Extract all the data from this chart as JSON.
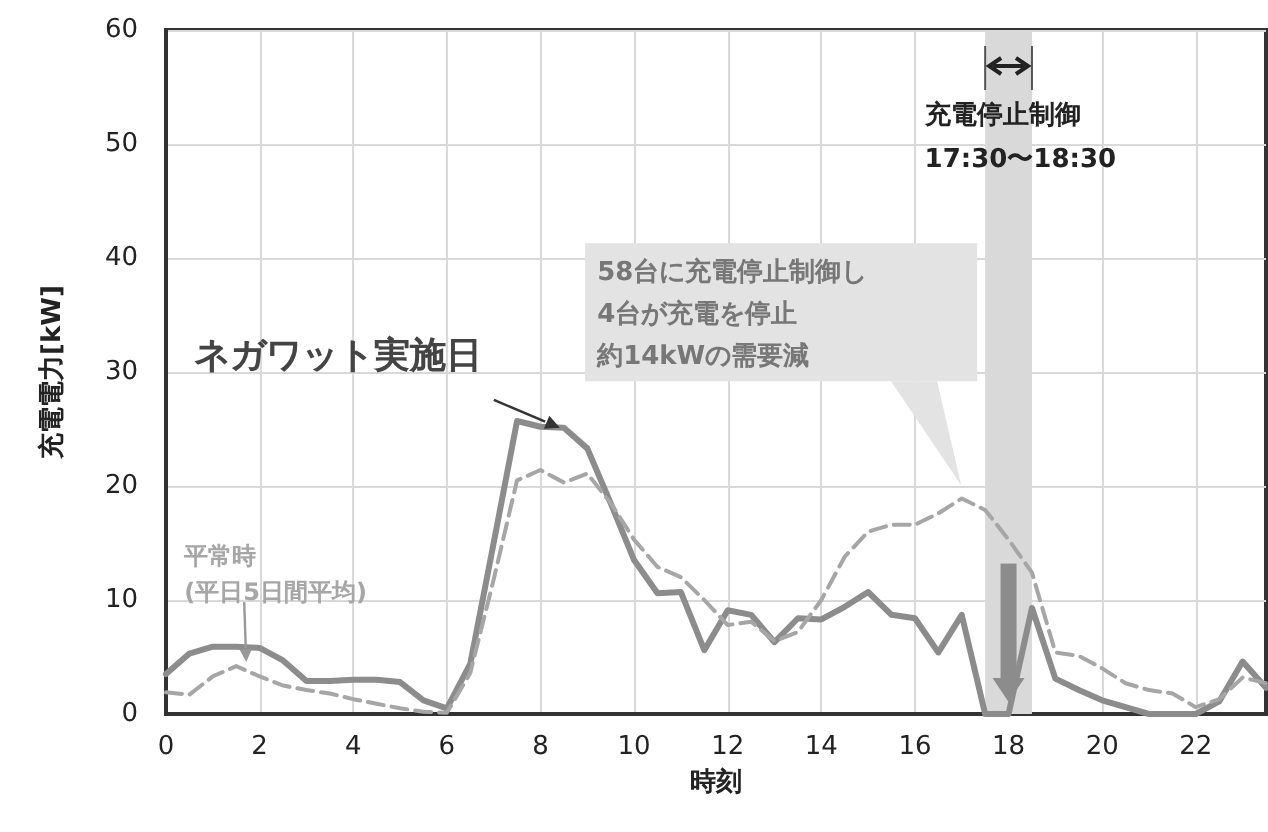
{
  "chart_data": {
    "type": "line",
    "xlabel": "時刻",
    "ylabel": "充電電力[kW]",
    "x": [
      0,
      0.5,
      1,
      1.5,
      2,
      2.5,
      3,
      3.5,
      4,
      4.5,
      5,
      5.5,
      6,
      6.5,
      7,
      7.5,
      8,
      8.5,
      9,
      9.5,
      10,
      10.5,
      11,
      11.5,
      12,
      12.5,
      13,
      13.5,
      14,
      14.5,
      15,
      15.5,
      16,
      16.5,
      17,
      17.5,
      18,
      18.5,
      19,
      19.5,
      20,
      20.5,
      21,
      21.5,
      22,
      22.5,
      23,
      23.5
    ],
    "series": [
      {
        "name": "ネガワット実施日",
        "color": "#8c8c8c",
        "line_style": "solid",
        "values": [
          3.5,
          5.3,
          5.9,
          5.9,
          5.8,
          4.7,
          2.9,
          2.9,
          3.0,
          3.0,
          2.8,
          1.2,
          0.5,
          4.4,
          15.0,
          25.7,
          25.2,
          25.1,
          23.3,
          18.5,
          13.5,
          10.6,
          10.7,
          5.6,
          9.1,
          8.7,
          6.3,
          8.4,
          8.3,
          9.4,
          10.7,
          8.7,
          8.4,
          5.4,
          8.7,
          0,
          0,
          9.3,
          3.1,
          2.1,
          1.2,
          0.6,
          0,
          0,
          0,
          1.1,
          4.6,
          2.3
        ]
      },
      {
        "name": "平常時\n(平日5日間平均)",
        "color": "#a6a6a6",
        "line_style": "dashed",
        "values": [
          1.9,
          1.7,
          3.3,
          4.2,
          3.3,
          2.5,
          2.1,
          1.8,
          1.3,
          0.9,
          0.5,
          0.2,
          0.1,
          3.6,
          11.8,
          20.5,
          21.4,
          20.3,
          21.1,
          18.5,
          15.3,
          12.9,
          12.0,
          10.0,
          7.8,
          8.1,
          6.4,
          7.2,
          10.0,
          13.8,
          16.0,
          16.6,
          16.6,
          17.6,
          18.9,
          17.9,
          15.3,
          12.4,
          5.4,
          5.1,
          4.0,
          2.7,
          2.1,
          1.8,
          0.6,
          1.3,
          3.2,
          2.7
        ]
      }
    ],
    "xlim": [
      0,
      23.5
    ],
    "xticks": [
      0,
      2,
      4,
      6,
      8,
      10,
      12,
      14,
      16,
      18,
      20,
      22
    ],
    "ylim": [
      0,
      60
    ],
    "yticks": [
      0,
      10,
      20,
      30,
      40,
      50,
      60
    ],
    "grid": true,
    "legend": false,
    "marker": "none",
    "bands": [
      {
        "axis": "x",
        "from": 17.5,
        "to": 18.5,
        "label": "充電停止制御\n17:30〜18:30",
        "color": "#d9d9d9"
      }
    ],
    "annotations": [
      "58台に充電停止制御し",
      "4台が充電を停止",
      "約14kWの需要減"
    ]
  }
}
